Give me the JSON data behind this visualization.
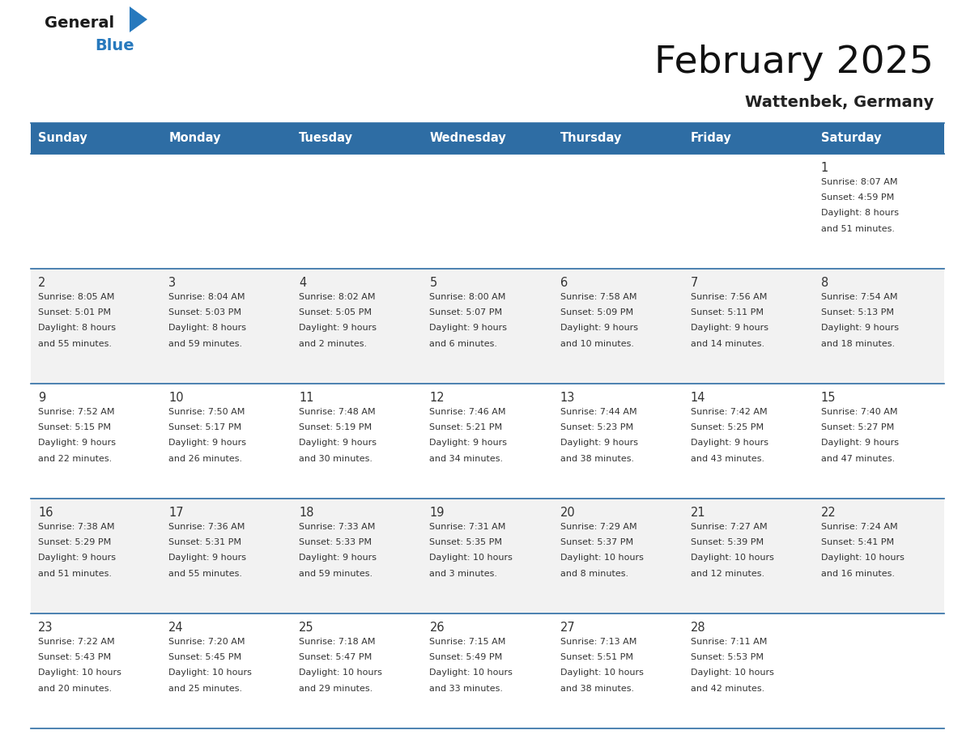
{
  "title": "February 2025",
  "subtitle": "Wattenbek, Germany",
  "header_bg": "#2E6DA4",
  "header_text_color": "#FFFFFF",
  "days_of_week": [
    "Sunday",
    "Monday",
    "Tuesday",
    "Wednesday",
    "Thursday",
    "Friday",
    "Saturday"
  ],
  "bg_color": "#FFFFFF",
  "cell_bg_even": "#FFFFFF",
  "cell_bg_odd": "#F2F2F2",
  "line_color": "#2E6DA4",
  "text_color": "#333333",
  "logo_general_color": "#1a1a1a",
  "logo_blue_color": "#2779BD",
  "calendar_data": [
    [
      null,
      null,
      null,
      null,
      null,
      null,
      {
        "day": 1,
        "sunrise": "8:07 AM",
        "sunset": "4:59 PM",
        "daylight": "8 hours\nand 51 minutes."
      }
    ],
    [
      {
        "day": 2,
        "sunrise": "8:05 AM",
        "sunset": "5:01 PM",
        "daylight": "8 hours\nand 55 minutes."
      },
      {
        "day": 3,
        "sunrise": "8:04 AM",
        "sunset": "5:03 PM",
        "daylight": "8 hours\nand 59 minutes."
      },
      {
        "day": 4,
        "sunrise": "8:02 AM",
        "sunset": "5:05 PM",
        "daylight": "9 hours\nand 2 minutes."
      },
      {
        "day": 5,
        "sunrise": "8:00 AM",
        "sunset": "5:07 PM",
        "daylight": "9 hours\nand 6 minutes."
      },
      {
        "day": 6,
        "sunrise": "7:58 AM",
        "sunset": "5:09 PM",
        "daylight": "9 hours\nand 10 minutes."
      },
      {
        "day": 7,
        "sunrise": "7:56 AM",
        "sunset": "5:11 PM",
        "daylight": "9 hours\nand 14 minutes."
      },
      {
        "day": 8,
        "sunrise": "7:54 AM",
        "sunset": "5:13 PM",
        "daylight": "9 hours\nand 18 minutes."
      }
    ],
    [
      {
        "day": 9,
        "sunrise": "7:52 AM",
        "sunset": "5:15 PM",
        "daylight": "9 hours\nand 22 minutes."
      },
      {
        "day": 10,
        "sunrise": "7:50 AM",
        "sunset": "5:17 PM",
        "daylight": "9 hours\nand 26 minutes."
      },
      {
        "day": 11,
        "sunrise": "7:48 AM",
        "sunset": "5:19 PM",
        "daylight": "9 hours\nand 30 minutes."
      },
      {
        "day": 12,
        "sunrise": "7:46 AM",
        "sunset": "5:21 PM",
        "daylight": "9 hours\nand 34 minutes."
      },
      {
        "day": 13,
        "sunrise": "7:44 AM",
        "sunset": "5:23 PM",
        "daylight": "9 hours\nand 38 minutes."
      },
      {
        "day": 14,
        "sunrise": "7:42 AM",
        "sunset": "5:25 PM",
        "daylight": "9 hours\nand 43 minutes."
      },
      {
        "day": 15,
        "sunrise": "7:40 AM",
        "sunset": "5:27 PM",
        "daylight": "9 hours\nand 47 minutes."
      }
    ],
    [
      {
        "day": 16,
        "sunrise": "7:38 AM",
        "sunset": "5:29 PM",
        "daylight": "9 hours\nand 51 minutes."
      },
      {
        "day": 17,
        "sunrise": "7:36 AM",
        "sunset": "5:31 PM",
        "daylight": "9 hours\nand 55 minutes."
      },
      {
        "day": 18,
        "sunrise": "7:33 AM",
        "sunset": "5:33 PM",
        "daylight": "9 hours\nand 59 minutes."
      },
      {
        "day": 19,
        "sunrise": "7:31 AM",
        "sunset": "5:35 PM",
        "daylight": "10 hours\nand 3 minutes."
      },
      {
        "day": 20,
        "sunrise": "7:29 AM",
        "sunset": "5:37 PM",
        "daylight": "10 hours\nand 8 minutes."
      },
      {
        "day": 21,
        "sunrise": "7:27 AM",
        "sunset": "5:39 PM",
        "daylight": "10 hours\nand 12 minutes."
      },
      {
        "day": 22,
        "sunrise": "7:24 AM",
        "sunset": "5:41 PM",
        "daylight": "10 hours\nand 16 minutes."
      }
    ],
    [
      {
        "day": 23,
        "sunrise": "7:22 AM",
        "sunset": "5:43 PM",
        "daylight": "10 hours\nand 20 minutes."
      },
      {
        "day": 24,
        "sunrise": "7:20 AM",
        "sunset": "5:45 PM",
        "daylight": "10 hours\nand 25 minutes."
      },
      {
        "day": 25,
        "sunrise": "7:18 AM",
        "sunset": "5:47 PM",
        "daylight": "10 hours\nand 29 minutes."
      },
      {
        "day": 26,
        "sunrise": "7:15 AM",
        "sunset": "5:49 PM",
        "daylight": "10 hours\nand 33 minutes."
      },
      {
        "day": 27,
        "sunrise": "7:13 AM",
        "sunset": "5:51 PM",
        "daylight": "10 hours\nand 38 minutes."
      },
      {
        "day": 28,
        "sunrise": "7:11 AM",
        "sunset": "5:53 PM",
        "daylight": "10 hours\nand 42 minutes."
      },
      null
    ]
  ]
}
